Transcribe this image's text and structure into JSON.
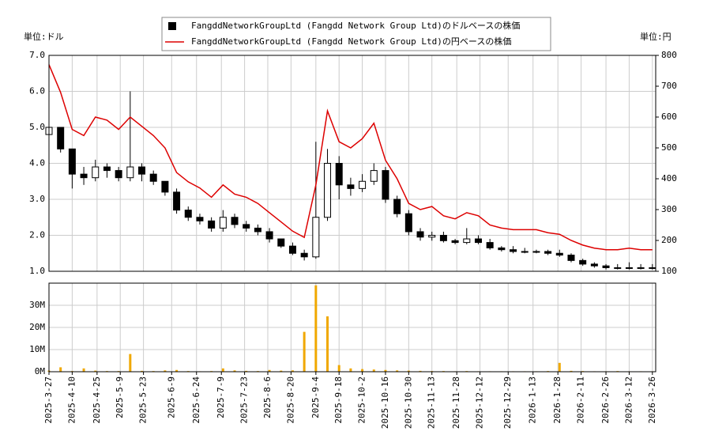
{
  "chart_data": [
    {
      "type": "candlestick",
      "legend": [
        "FangddNetworkGroupLtd (Fangdd Network Group Ltd)のドルベースの株価",
        "FangddNetworkGroupLtd (Fangdd Network Group Ltd)の円ベースの株価"
      ],
      "y_unit": "単位:ドル",
      "y2_unit": "単位:円",
      "color": "#000000",
      "x": [
        "2025-3-27",
        "2025-4-3",
        "2025-4-10",
        "2025-4-17",
        "2025-4-24",
        "2025-5-1",
        "2025-5-8",
        "2025-5-15",
        "2025-5-22",
        "2025-5-29",
        "2025-6-5",
        "2025-6-12",
        "2025-6-19",
        "2025-6-26",
        "2025-7-3",
        "2025-7-10",
        "2025-7-17",
        "2025-7-24",
        "2025-7-31",
        "2025-8-7",
        "2025-8-14",
        "2025-8-21",
        "2025-8-28",
        "2025-9-4",
        "2025-9-11",
        "2025-9-18",
        "2025-9-25",
        "2025-10-2",
        "2025-10-9",
        "2025-10-16",
        "2025-10-23",
        "2025-10-30",
        "2025-11-6",
        "2025-11-13",
        "2025-11-20",
        "2025-11-27",
        "2025-12-4",
        "2025-12-11",
        "2025-12-18",
        "2025-12-25",
        "2026-1-1",
        "2026-1-8",
        "2026-1-15",
        "2026-1-22",
        "2026-1-29",
        "2026-2-5",
        "2026-2-12",
        "2026-2-19",
        "2026-2-26",
        "2026-3-5",
        "2026-3-12",
        "2026-3-19",
        "2026-3-26"
      ],
      "open": [
        4.8,
        5.0,
        4.4,
        3.7,
        3.6,
        3.9,
        3.8,
        3.6,
        3.9,
        3.7,
        3.5,
        3.2,
        2.7,
        2.5,
        2.4,
        2.2,
        2.5,
        2.3,
        2.2,
        2.1,
        1.9,
        1.7,
        1.5,
        1.4,
        2.5,
        4.0,
        3.4,
        3.3,
        3.5,
        3.8,
        3.0,
        2.6,
        2.1,
        1.95,
        2.0,
        1.85,
        1.8,
        1.9,
        1.8,
        1.65,
        1.6,
        1.55,
        1.55,
        1.55,
        1.5,
        1.45,
        1.3,
        1.2,
        1.15,
        1.1,
        1.1,
        1.1,
        1.1
      ],
      "high": [
        5.2,
        5.0,
        4.4,
        3.9,
        4.1,
        4.0,
        3.9,
        6.0,
        4.0,
        3.8,
        3.5,
        3.3,
        2.8,
        2.6,
        2.5,
        2.7,
        2.6,
        2.4,
        2.3,
        2.2,
        1.9,
        1.8,
        1.6,
        4.6,
        4.4,
        4.2,
        3.6,
        3.7,
        4.0,
        3.9,
        3.1,
        2.7,
        2.2,
        2.1,
        2.1,
        1.9,
        2.2,
        2.0,
        1.9,
        1.7,
        1.7,
        1.65,
        1.6,
        1.6,
        1.6,
        1.5,
        1.35,
        1.25,
        1.2,
        1.2,
        1.25,
        1.2,
        1.2
      ],
      "low": [
        4.6,
        4.3,
        3.3,
        3.4,
        3.5,
        3.6,
        3.5,
        3.5,
        3.5,
        3.4,
        3.1,
        2.6,
        2.4,
        2.3,
        2.1,
        2.1,
        2.2,
        2.1,
        2.0,
        1.8,
        1.65,
        1.45,
        1.3,
        1.35,
        2.4,
        3.0,
        3.1,
        3.2,
        3.4,
        2.9,
        2.5,
        2.0,
        1.85,
        1.85,
        1.8,
        1.75,
        1.75,
        1.75,
        1.6,
        1.55,
        1.5,
        1.5,
        1.5,
        1.45,
        1.4,
        1.25,
        1.15,
        1.1,
        1.05,
        1.05,
        1.05,
        1.05,
        1.05
      ],
      "close": [
        5.0,
        4.4,
        3.7,
        3.6,
        3.9,
        3.8,
        3.6,
        3.9,
        3.7,
        3.5,
        3.2,
        2.7,
        2.5,
        2.4,
        2.2,
        2.5,
        2.3,
        2.2,
        2.1,
        1.9,
        1.7,
        1.5,
        1.4,
        2.5,
        4.0,
        3.4,
        3.3,
        3.5,
        3.8,
        3.0,
        2.6,
        2.1,
        1.95,
        2.0,
        1.85,
        1.8,
        1.9,
        1.8,
        1.65,
        1.6,
        1.55,
        1.55,
        1.55,
        1.5,
        1.45,
        1.3,
        1.2,
        1.15,
        1.1,
        1.1,
        1.1,
        1.1,
        1.1
      ],
      "series": [
        {
          "name": "円ベース",
          "color": "#dd0000",
          "axis": "y2",
          "values": [
            770,
            680,
            560,
            540,
            600,
            590,
            560,
            600,
            570,
            540,
            500,
            420,
            390,
            370,
            340,
            380,
            350,
            340,
            320,
            290,
            260,
            230,
            210,
            380,
            620,
            520,
            500,
            530,
            580,
            460,
            400,
            320,
            300,
            310,
            280,
            270,
            290,
            280,
            250,
            240,
            235,
            235,
            235,
            225,
            220,
            200,
            185,
            175,
            170,
            170,
            175,
            170,
            170
          ]
        }
      ],
      "xlim": [
        "2025-3-27",
        "2026-3-28"
      ],
      "ylim": [
        1,
        7
      ],
      "yticks": [
        {
          "value": 1,
          "label": "1.0"
        },
        {
          "value": 2,
          "label": "2.0"
        },
        {
          "value": 3,
          "label": "3.0"
        },
        {
          "value": 4,
          "label": "4.0"
        },
        {
          "value": 5,
          "label": "5.0"
        },
        {
          "value": 6,
          "label": "6.0"
        },
        {
          "value": 7,
          "label": "7.0"
        }
      ],
      "y2lim": [
        100,
        800
      ],
      "y2ticks": [
        100,
        200,
        300,
        400,
        500,
        600,
        700,
        800
      ],
      "grid": true
    },
    {
      "type": "bar",
      "color": "#f0a800",
      "values": [
        500000,
        2000000,
        300000,
        1500000,
        500000,
        300000,
        300000,
        8000000,
        400000,
        300000,
        600000,
        800000,
        300000,
        200000,
        300000,
        1500000,
        600000,
        400000,
        300000,
        800000,
        500000,
        600000,
        18000000,
        39000000,
        25000000,
        3000000,
        1500000,
        1200000,
        1000000,
        800000,
        600000,
        500000,
        400000,
        300000,
        300000,
        200000,
        300000,
        200000,
        200000,
        200000,
        200000,
        200000,
        200000,
        300000,
        4000000,
        400000,
        300000,
        200000,
        200000,
        300000,
        200000,
        200000,
        200000
      ],
      "xlim": [
        "2025-3-27",
        "2026-3-28"
      ],
      "xticks": [
        "2025-3-27",
        "2025-4-10",
        "2025-4-25",
        "2025-5-9",
        "2025-5-23",
        "2025-6-9",
        "2025-6-24",
        "2025-7-9",
        "2025-7-23",
        "2025-8-6",
        "2025-8-20",
        "2025-9-4",
        "2025-9-18",
        "2025-10-2",
        "2025-10-16",
        "2025-10-30",
        "2025-11-13",
        "2025-11-28",
        "2025-12-12",
        "2025-12-29",
        "2026-1-13",
        "2026-1-28",
        "2026-2-11",
        "2026-2-26",
        "2026-3-12",
        "2026-3-26"
      ],
      "ylim": [
        0,
        40000000
      ],
      "yticks": [
        {
          "value": 0,
          "label": "0M"
        },
        {
          "value": 10000000,
          "label": "10M"
        },
        {
          "value": 20000000,
          "label": "20M"
        },
        {
          "value": 30000000,
          "label": "30M"
        }
      ],
      "grid": true
    }
  ]
}
